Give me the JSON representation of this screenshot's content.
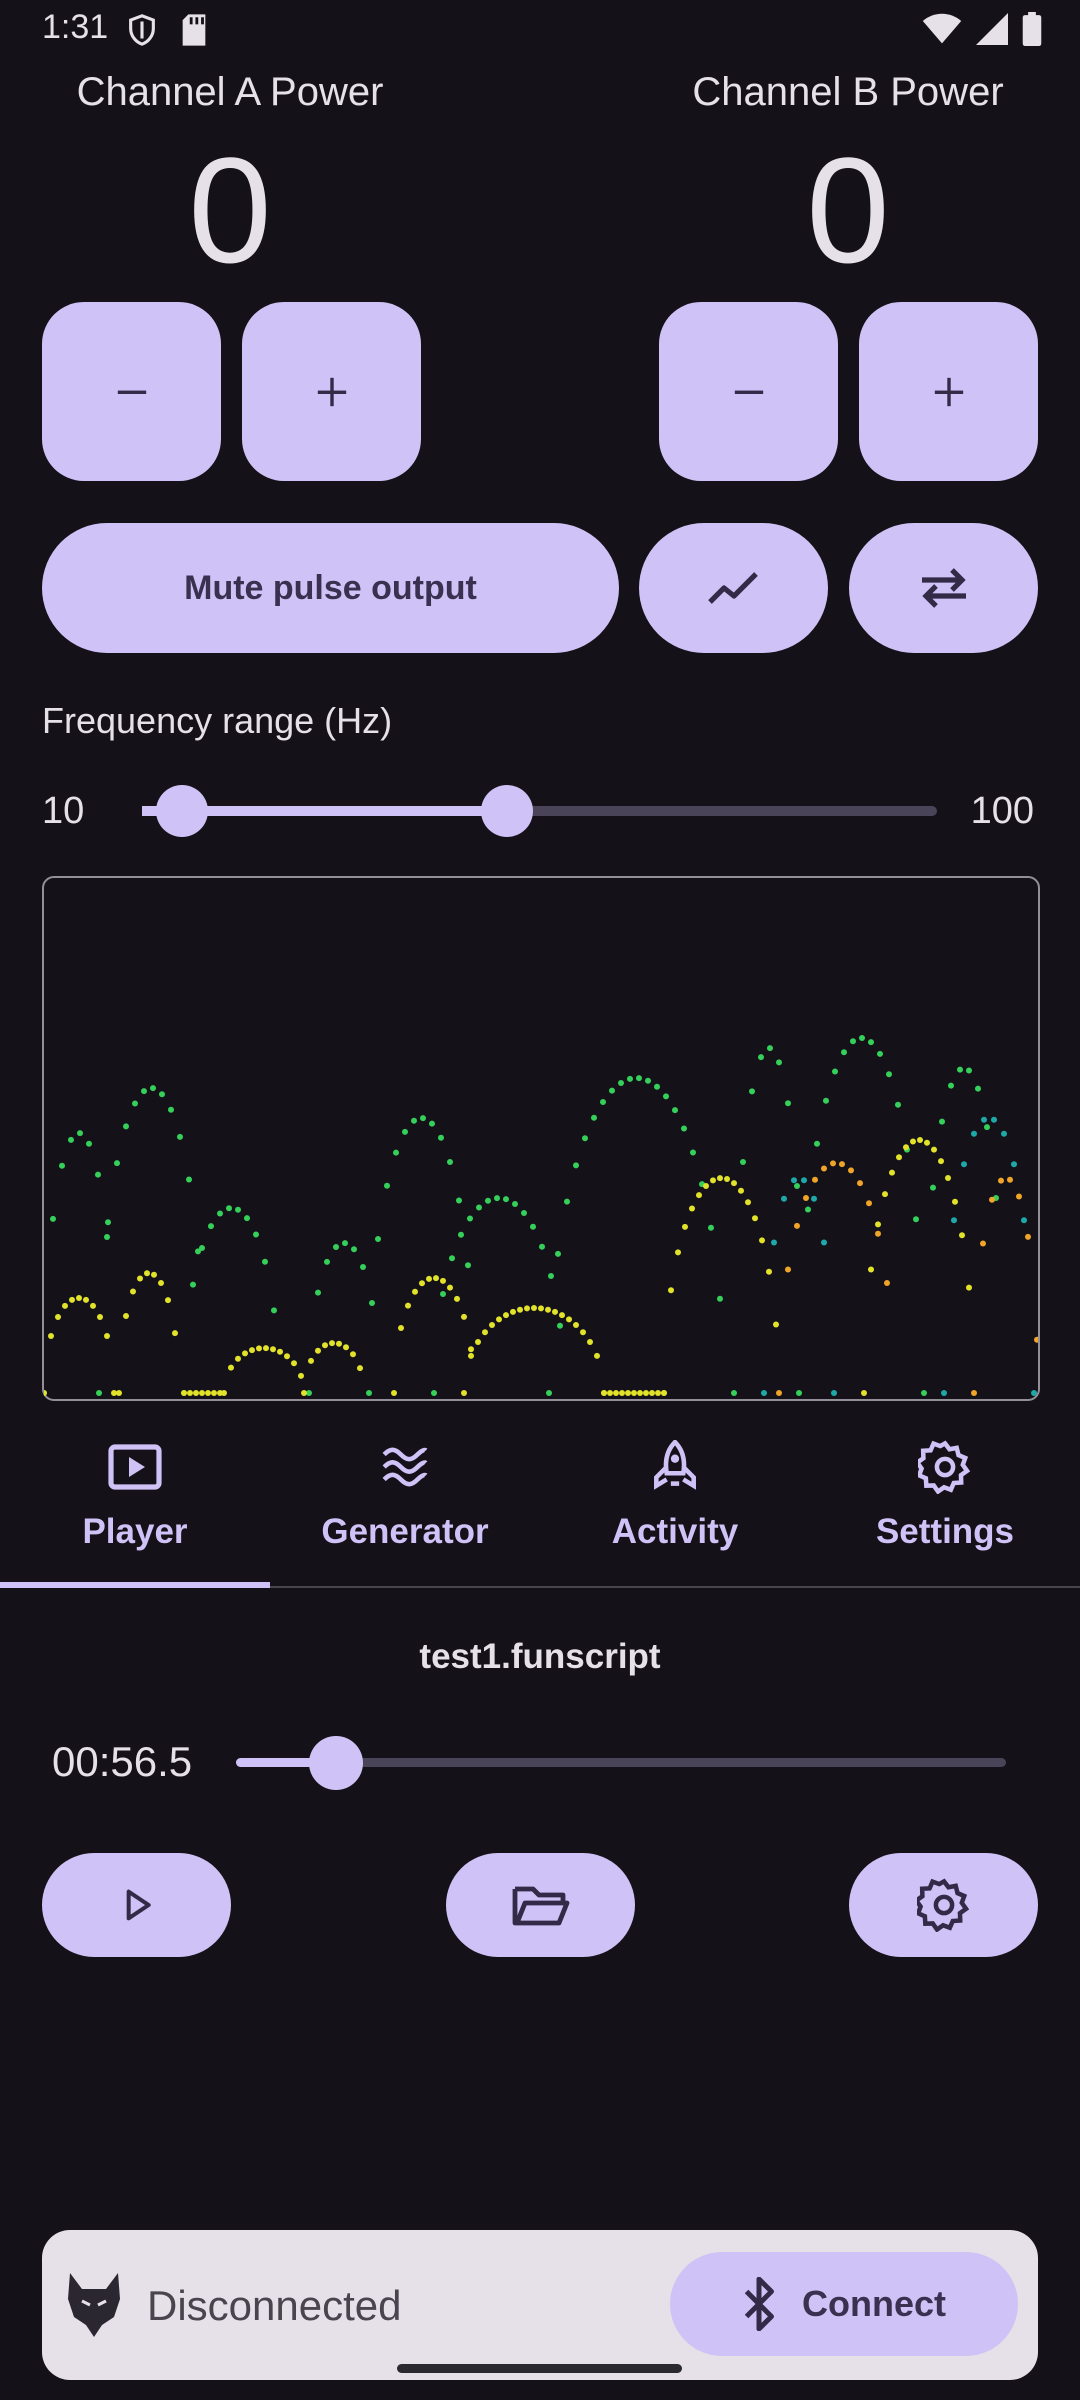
{
  "status_bar": {
    "time": "1:31"
  },
  "channels": {
    "a": {
      "title": "Channel A Power",
      "value": "0"
    },
    "b": {
      "title": "Channel B Power",
      "value": "0"
    }
  },
  "controls": {
    "mute_label": "Mute pulse output"
  },
  "frequency": {
    "title": "Frequency range (Hz)",
    "min_label": "10",
    "max_label": "100",
    "low": 10,
    "high": 50
  },
  "tabs": [
    {
      "label": "Player",
      "icon": "play-box-icon",
      "selected": true
    },
    {
      "label": "Generator",
      "icon": "waves-icon",
      "selected": false
    },
    {
      "label": "Activity",
      "icon": "rocket-icon",
      "selected": false
    },
    {
      "label": "Settings",
      "icon": "gear-icon",
      "selected": false
    }
  ],
  "player": {
    "file": "test1.funscript",
    "position": "00:56.5",
    "progress": 0.13
  },
  "connection": {
    "status": "Disconnected",
    "button_label": "Connect"
  },
  "colors": {
    "accent": "#cfc2f6",
    "background": "#141218",
    "on_accent": "#322a47"
  }
}
